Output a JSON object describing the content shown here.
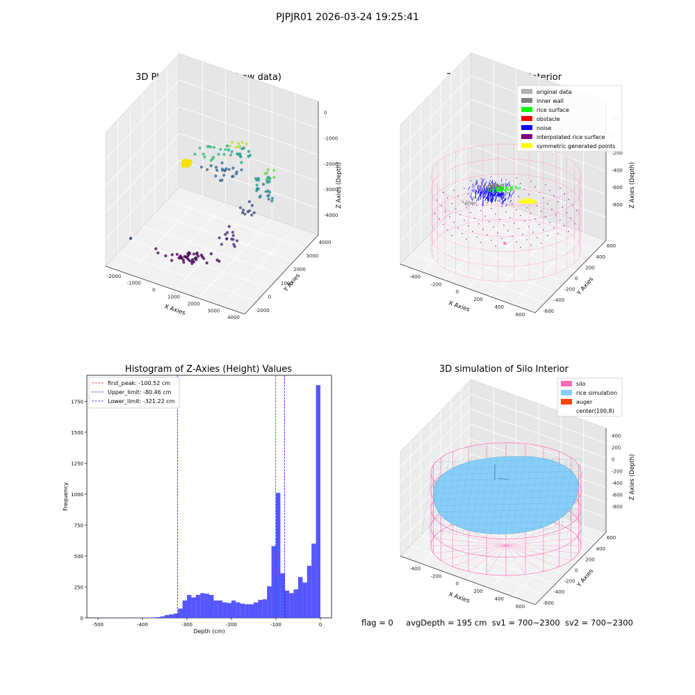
{
  "figure": {
    "suptitle": "PJPJR01 2026-03-24 19:25:41",
    "footer": {
      "flag": "flag = 0",
      "avgDepth": "avgDepth = 195 cm",
      "sv1": "sv1 = 700~2300",
      "sv2": "sv2 = 700~2300"
    }
  },
  "colors": {
    "hist_bar": "#4d4dff",
    "first_peak_line": "#e01010",
    "limit_line": "#1010e0",
    "silo_wire": "#ff69b4",
    "rice_surface": "#87cefa",
    "auger": "#ff4500",
    "original_data": "#b0b0b0",
    "inner_wall": "#808080",
    "rice_surface_cls": "#00ff00",
    "obstacle": "#ff0000",
    "noise": "#0000ff",
    "interpolated": "#800080",
    "symmetric": "#ffff00"
  },
  "chart_data": [
    {
      "type": "scatter",
      "title": "3D Plot of Silo Interior(row data)",
      "xlabel": "X Axies",
      "ylabel": "Y Axies",
      "zlabel": "Z Axies (Depth)",
      "x_ticks": [
        "-2000",
        "-1000",
        "0",
        "1000",
        "2000",
        "3000",
        "4000"
      ],
      "y_ticks": [
        "-2000",
        "0",
        "1000",
        "2000",
        "3000",
        "4000"
      ],
      "z_ticks": [
        "0",
        "-1000",
        "-2000",
        "-3000",
        "-4000"
      ],
      "note": "3D point cloud colored by depth (viridis)"
    },
    {
      "type": "scatter",
      "title": "3D classify of Silo Interior",
      "xlabel": "X Axies",
      "ylabel": "Y Axies",
      "zlabel": "Z Axies (Depth)",
      "x_ticks": [
        "-400",
        "-200",
        "0",
        "200",
        "400",
        "600"
      ],
      "y_ticks": [
        "-600",
        "-400",
        "-200",
        "0",
        "200",
        "400",
        "600"
      ],
      "z_ticks": [
        "200",
        "0",
        "-200",
        "-400",
        "-600",
        "-800"
      ],
      "legend_position": "top-right",
      "legend": [
        {
          "label": "original data",
          "color": "#b0b0b0"
        },
        {
          "label": "inner wall",
          "color": "#808080"
        },
        {
          "label": "rice surface",
          "color": "#00ff00"
        },
        {
          "label": "obstacle",
          "color": "#ff0000"
        },
        {
          "label": "noise",
          "color": "#0000ff"
        },
        {
          "label": "interpolated rice surface",
          "color": "#800080"
        },
        {
          "label": "symmetric generated points",
          "color": "#ffff00"
        }
      ]
    },
    {
      "type": "bar",
      "title": "Histogram of Z-Axies (Height) Values",
      "xlabel": "Depth (cm)",
      "ylabel": "Frequency",
      "xlim": [
        -525,
        25
      ],
      "ylim": [
        0,
        1960
      ],
      "x_ticks": [
        -500,
        -400,
        -300,
        -200,
        -100,
        0
      ],
      "y_ticks": [
        0,
        250,
        500,
        750,
        1000,
        1250,
        1500,
        1750
      ],
      "bin_width": 10,
      "bins": [
        [
          -500,
          1
        ],
        [
          -490,
          1
        ],
        [
          -480,
          1
        ],
        [
          -470,
          1
        ],
        [
          -460,
          1
        ],
        [
          -450,
          1
        ],
        [
          -440,
          1
        ],
        [
          -430,
          1
        ],
        [
          -420,
          1
        ],
        [
          -410,
          1
        ],
        [
          -400,
          2
        ],
        [
          -390,
          2
        ],
        [
          -380,
          4
        ],
        [
          -370,
          6
        ],
        [
          -360,
          12
        ],
        [
          -350,
          22
        ],
        [
          -340,
          28
        ],
        [
          -330,
          35
        ],
        [
          -320,
          75
        ],
        [
          -310,
          140
        ],
        [
          -300,
          185
        ],
        [
          -290,
          165
        ],
        [
          -280,
          185
        ],
        [
          -270,
          200
        ],
        [
          -260,
          195
        ],
        [
          -250,
          185
        ],
        [
          -240,
          140
        ],
        [
          -230,
          140
        ],
        [
          -220,
          125
        ],
        [
          -210,
          120
        ],
        [
          -200,
          140
        ],
        [
          -190,
          125
        ],
        [
          -180,
          115
        ],
        [
          -170,
          110
        ],
        [
          -160,
          110
        ],
        [
          -150,
          125
        ],
        [
          -140,
          145
        ],
        [
          -130,
          150
        ],
        [
          -120,
          255
        ],
        [
          -110,
          580
        ],
        [
          -100,
          1010
        ],
        [
          -90,
          360
        ],
        [
          -80,
          220
        ],
        [
          -70,
          200
        ],
        [
          -60,
          230
        ],
        [
          -50,
          330
        ],
        [
          -40,
          285
        ],
        [
          -30,
          420
        ],
        [
          -20,
          600
        ],
        [
          -10,
          1880
        ]
      ],
      "vlines": [
        {
          "label": "first_peak: -100.52 cm",
          "x": -100.52,
          "color": "#e01010"
        },
        {
          "label": "Upper_limit: -80.46 cm",
          "x": -80.46,
          "color": "#1010e0"
        },
        {
          "label": "Lower_limit: -321.22 cm",
          "x": -321.22,
          "color": "#1010e0"
        }
      ],
      "legend_position": "top-left"
    },
    {
      "type": "area",
      "title": "3D simulation of Silo Interior",
      "xlabel": "X Axies",
      "ylabel": "Y Axies",
      "zlabel": "Z Axies (Depth)",
      "x_ticks": [
        "-400",
        "-200",
        "0",
        "200",
        "400",
        "600"
      ],
      "y_ticks": [
        "-600",
        "-400",
        "-200",
        "0",
        "200",
        "400",
        "600"
      ],
      "z_ticks": [
        "400",
        "200",
        "0",
        "-200",
        "-400",
        "-600",
        "-800"
      ],
      "legend_position": "top-right",
      "legend": [
        {
          "label": "silo",
          "color": "#ff69b4"
        },
        {
          "label": "rice simulation",
          "color": "#87cefa"
        },
        {
          "label": "auger",
          "color": "#ff4500"
        },
        {
          "label": "center(100,8)",
          "color": ""
        }
      ]
    }
  ]
}
